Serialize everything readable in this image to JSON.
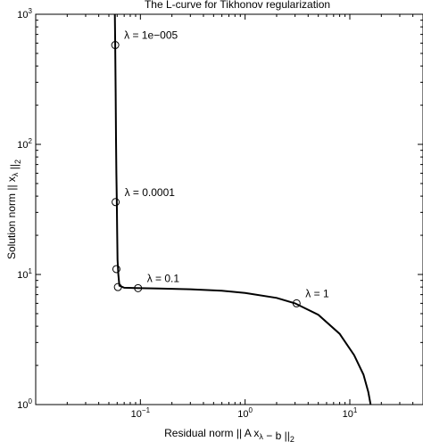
{
  "chart_data": {
    "type": "line",
    "title": "The L-curve for Tikhonov regularization",
    "xlabel": "Residual norm || A x_λ − b ||_2",
    "ylabel": "Solution norm || x_λ ||_2",
    "xscale": "log",
    "yscale": "log",
    "xlim": [
      0.01,
      50
    ],
    "ylim": [
      1,
      1000
    ],
    "x_ticks": [
      {
        "value": 0.1,
        "base": "10",
        "exp": "−1"
      },
      {
        "value": 1,
        "base": "10",
        "exp": "0"
      },
      {
        "value": 10,
        "base": "10",
        "exp": "1"
      }
    ],
    "y_ticks": [
      {
        "value": 1,
        "base": "10",
        "exp": "0"
      },
      {
        "value": 10,
        "base": "10",
        "exp": "1"
      },
      {
        "value": 100,
        "base": "10",
        "exp": "2"
      },
      {
        "value": 1000,
        "base": "10",
        "exp": "3"
      }
    ],
    "grid": false,
    "series": [
      {
        "x": [
          0.057,
          0.0575,
          0.058,
          0.0585,
          0.059,
          0.0595,
          0.06,
          0.0605,
          0.0615,
          0.063,
          0.07,
          0.09,
          0.15,
          0.3,
          0.6,
          1.0,
          2.0,
          3.0,
          5.0,
          8.0,
          11.0,
          13.5,
          15.0,
          15.8
        ],
        "y": [
          1000,
          580,
          250,
          110,
          60,
          36,
          21,
          13,
          10,
          8.2,
          7.9,
          7.85,
          7.8,
          7.7,
          7.5,
          7.2,
          6.6,
          6.0,
          4.9,
          3.5,
          2.4,
          1.7,
          1.25,
          1.0
        ]
      }
    ],
    "markers": [
      {
        "x": 0.0575,
        "y": 580,
        "label": "λ = 1e−005"
      },
      {
        "x": 0.058,
        "y": 36,
        "label": "λ = 0.0001"
      },
      {
        "x": 0.059,
        "y": 11,
        "label": ""
      },
      {
        "x": 0.061,
        "y": 8,
        "label": ""
      },
      {
        "x": 0.095,
        "y": 7.85,
        "label": "λ = 0.1"
      },
      {
        "x": 3.1,
        "y": 6.0,
        "label": "λ = 1"
      }
    ]
  }
}
